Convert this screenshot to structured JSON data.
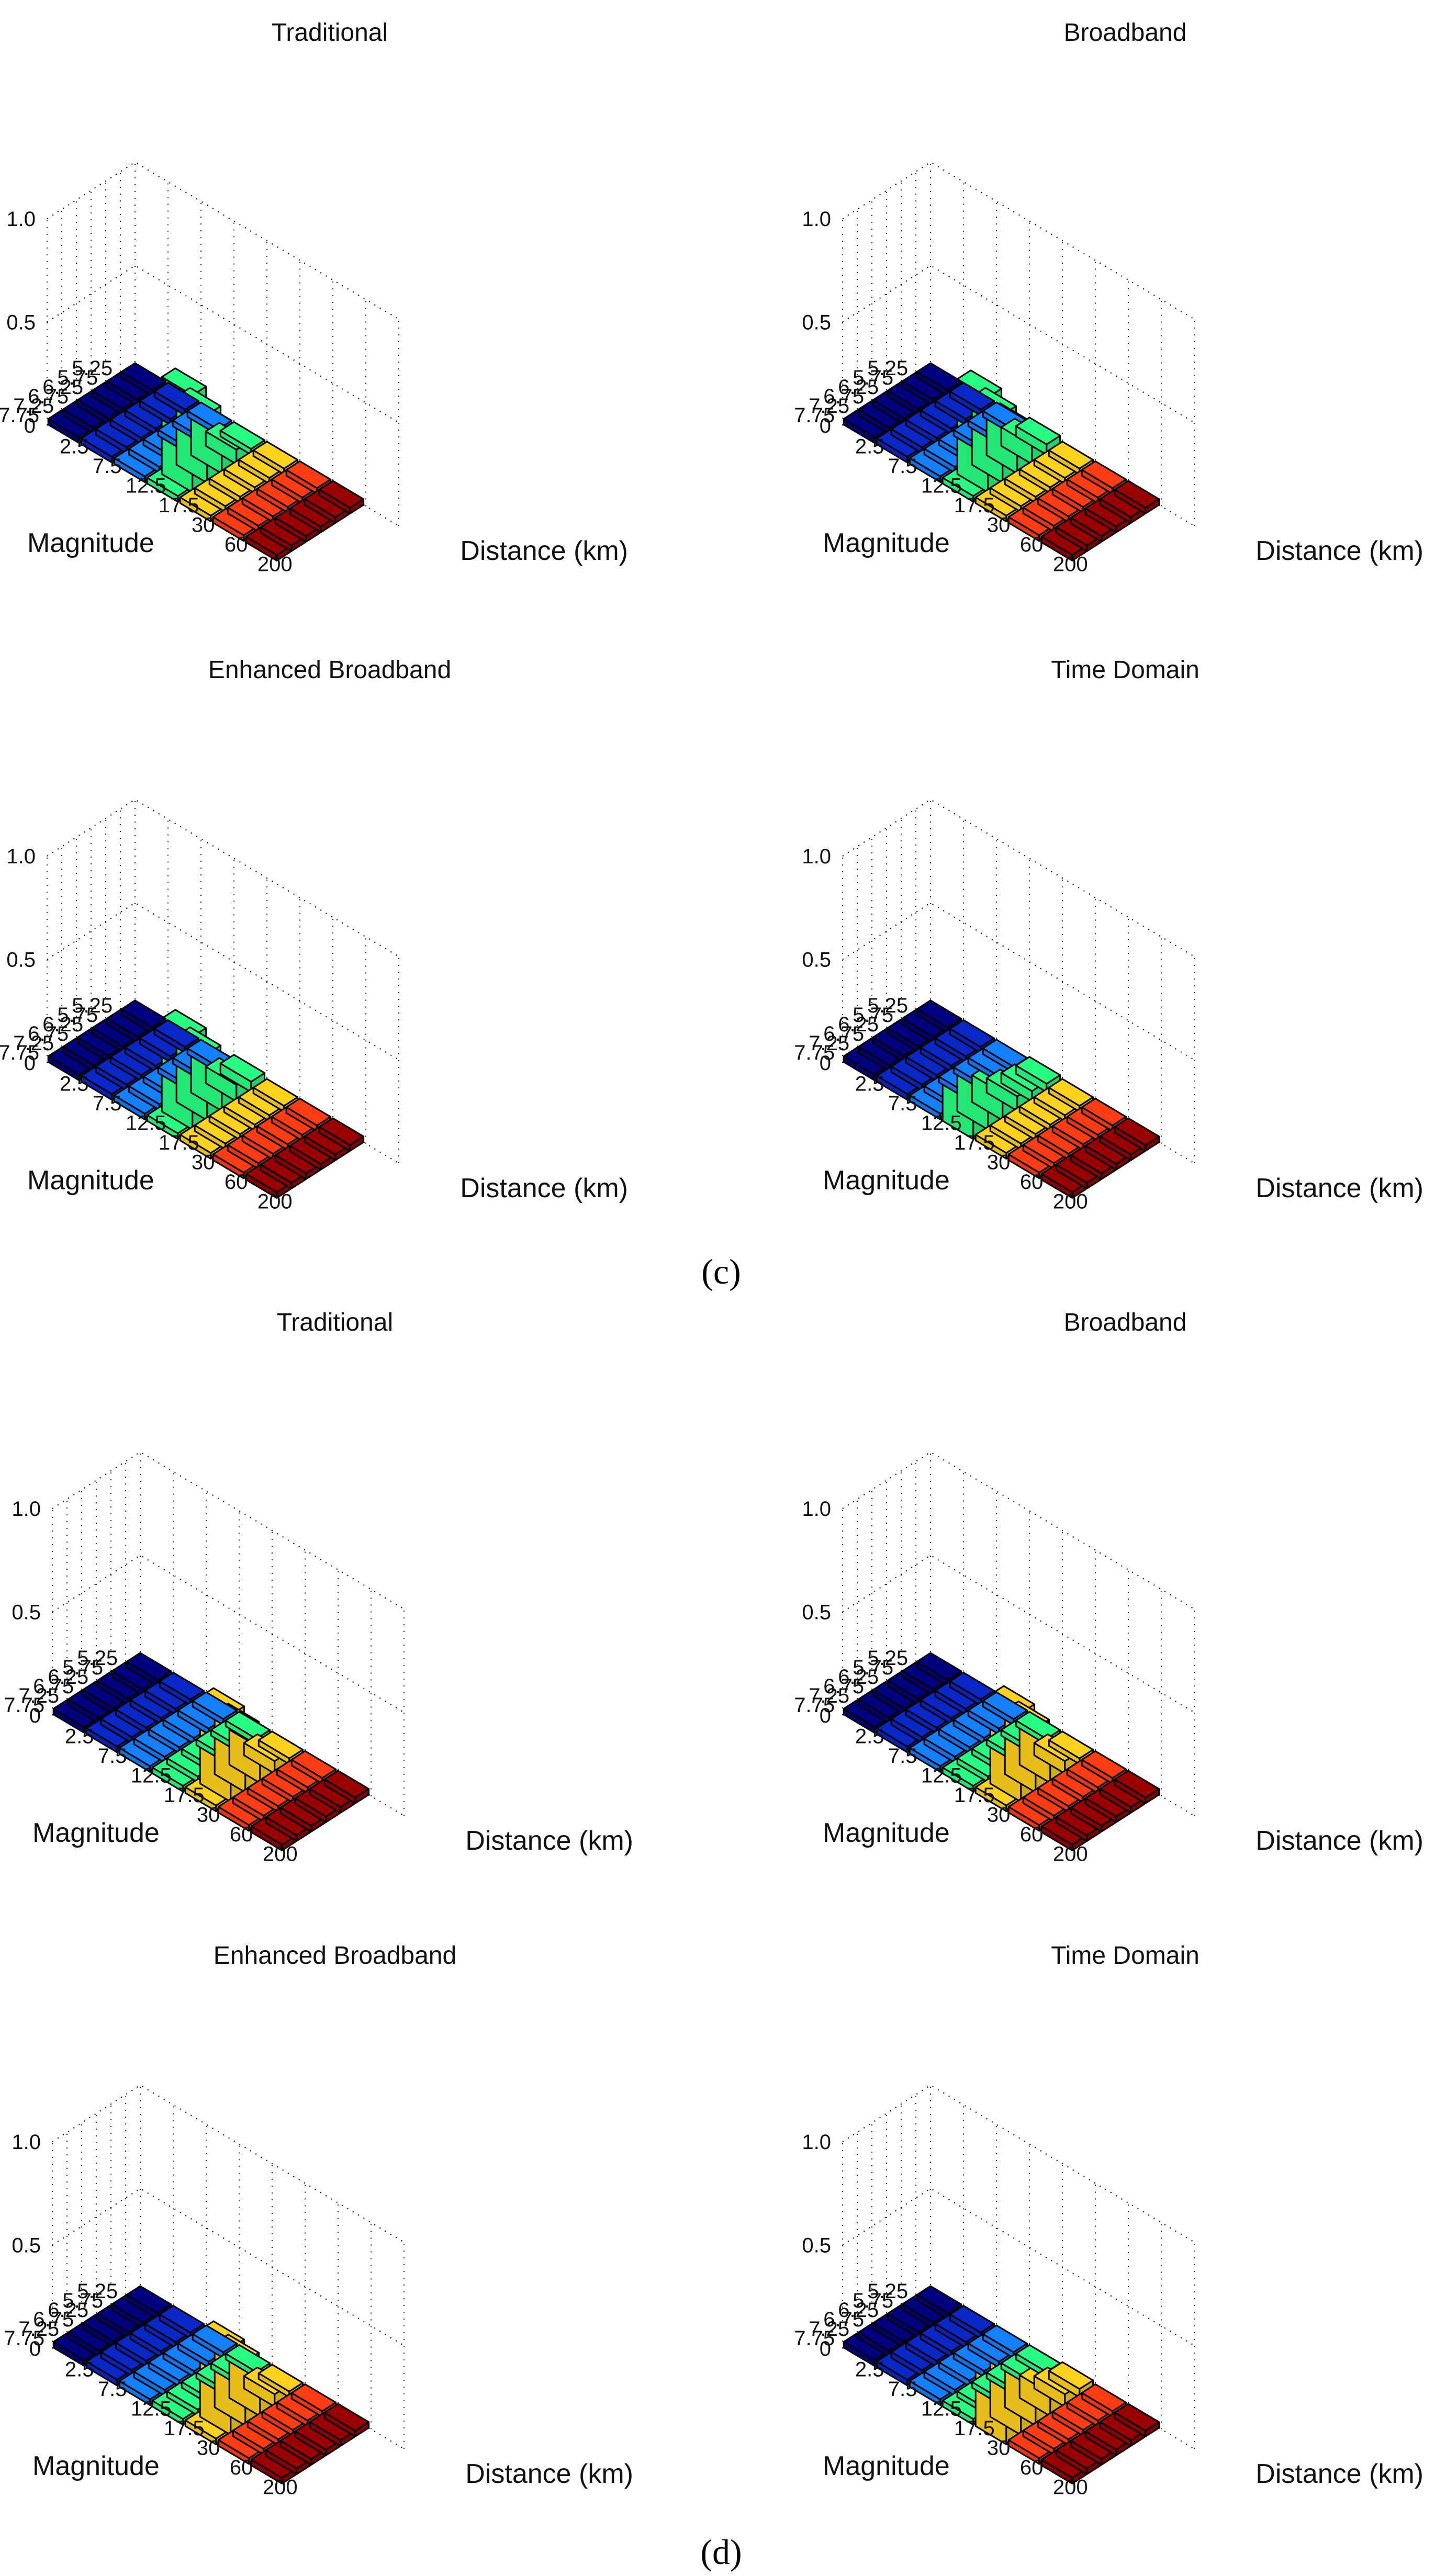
{
  "captions": [
    "(c)",
    "(d)"
  ],
  "color_scale": {
    "by_distance": [
      "#000080",
      "#0a28c8",
      "#1480ff",
      "#32e6ff",
      "#28ff82",
      "#ffd21e",
      "#ff3c14",
      "#9b0000"
    ]
  },
  "chart_data": [
    {
      "type": "bar3d",
      "group": "(c)",
      "title": "Traditional",
      "magnitudes": [
        "5.25",
        "5.75",
        "6.25",
        "6.75",
        "7.25",
        "7.75"
      ],
      "distances": [
        "2.5",
        "7.5",
        "12.5",
        "17.5",
        "30",
        "60",
        "200"
      ],
      "magnitude_ticks": [
        "5.25",
        "5.75",
        "6.25",
        "6.75",
        "7.25",
        "7.75"
      ],
      "distance_ticks": [
        "2.5",
        "7.5",
        "12.5",
        "17.5",
        "30",
        "60",
        "200"
      ],
      "z_ticks": [
        "0",
        "0.5",
        "1.0"
      ],
      "zlim": [
        0,
        1
      ],
      "xlabel": "Distance (km)",
      "ylabel": "Magnitude",
      "highlight_color": "#28ff82",
      "bars": [
        {
          "magnitude": "5.75",
          "distance": "17.5",
          "value": 0.07
        },
        {
          "magnitude": "6.25",
          "distance": "17.5",
          "value": 0.19
        },
        {
          "magnitude": "6.75",
          "distance": "17.5",
          "value": 0.33
        },
        {
          "magnitude": "7.25",
          "distance": "17.5",
          "value": 0.47
        }
      ]
    },
    {
      "type": "bar3d",
      "group": "(c)",
      "title": "Broadband",
      "magnitudes": [
        "5.25",
        "5.75",
        "6.25",
        "6.75",
        "7.25",
        "7.75"
      ],
      "distances": [
        "2.5",
        "7.5",
        "12.5",
        "17.5",
        "30",
        "60",
        "200"
      ],
      "magnitude_ticks": [
        "5.25",
        "5.75",
        "6.25",
        "6.75",
        "7.25",
        "7.75"
      ],
      "distance_ticks": [
        "2.5",
        "7.5",
        "12.5",
        "17.5",
        "30",
        "60",
        "200"
      ],
      "z_ticks": [
        "0",
        "0.5",
        "1.0"
      ],
      "zlim": [
        0,
        1
      ],
      "xlabel": "Distance (km)",
      "ylabel": "Magnitude",
      "highlight_color": "#28ff82",
      "bars": [
        {
          "magnitude": "5.25",
          "distance": "17.5",
          "value": 0.05
        },
        {
          "magnitude": "5.75",
          "distance": "17.5",
          "value": 0.09
        },
        {
          "magnitude": "6.25",
          "distance": "17.5",
          "value": 0.21
        },
        {
          "magnitude": "6.75",
          "distance": "17.5",
          "value": 0.33
        },
        {
          "magnitude": "7.25",
          "distance": "17.5",
          "value": 0.46
        }
      ]
    },
    {
      "type": "bar3d",
      "group": "(c)",
      "title": "Enhanced Broadband",
      "magnitudes": [
        "5.25",
        "5.75",
        "6.25",
        "6.75",
        "7.25",
        "7.75"
      ],
      "distances": [
        "2.5",
        "7.5",
        "12.5",
        "17.5",
        "30",
        "60",
        "200"
      ],
      "magnitude_ticks": [
        "5.25",
        "5.75",
        "6.25",
        "6.75",
        "7.25",
        "7.75"
      ],
      "distance_ticks": [
        "2.5",
        "7.5",
        "12.5",
        "17.5",
        "30",
        "60",
        "200"
      ],
      "z_ticks": [
        "0",
        "0.5",
        "1.0"
      ],
      "zlim": [
        0,
        1
      ],
      "xlabel": "Distance (km)",
      "ylabel": "Magnitude",
      "highlight_color": "#28ff82",
      "bars": [
        {
          "magnitude": "5.25",
          "distance": "17.5",
          "value": 0.05
        },
        {
          "magnitude": "5.75",
          "distance": "17.5",
          "value": 0.08
        },
        {
          "magnitude": "6.25",
          "distance": "17.5",
          "value": 0.2
        },
        {
          "magnitude": "6.75",
          "distance": "17.5",
          "value": 0.32
        },
        {
          "magnitude": "7.25",
          "distance": "17.5",
          "value": 0.45
        }
      ]
    },
    {
      "type": "bar3d",
      "group": "(c)",
      "title": "Time Domain",
      "magnitudes": [
        "5.25",
        "5.75",
        "6.25",
        "6.75",
        "7.25",
        "7.75"
      ],
      "distances": [
        "2.5",
        "7.5",
        "12.5",
        "17.5",
        "30",
        "60",
        "200"
      ],
      "magnitude_ticks": [
        "5.25",
        "5.75",
        "6.25",
        "6.75",
        "7.25",
        "7.75"
      ],
      "distance_ticks": [
        "2.5",
        "7.5",
        "12.5",
        "17.5",
        "30",
        "60",
        "200"
      ],
      "z_ticks": [
        "0",
        "0.5",
        "1.0"
      ],
      "zlim": [
        0,
        1
      ],
      "xlabel": "Distance (km)",
      "ylabel": "Magnitude",
      "highlight_color": "#28ff82",
      "bars": [
        {
          "magnitude": "5.25",
          "distance": "17.5",
          "value": 0.04
        },
        {
          "magnitude": "5.75",
          "distance": "17.5",
          "value": 0.05
        },
        {
          "magnitude": "6.25",
          "distance": "17.5",
          "value": 0.07
        },
        {
          "magnitude": "6.75",
          "distance": "17.5",
          "value": 0.13
        },
        {
          "magnitude": "7.25",
          "distance": "17.5",
          "value": 0.19
        },
        {
          "magnitude": "7.75",
          "distance": "17.5",
          "value": 0.22
        }
      ]
    },
    {
      "type": "bar3d",
      "group": "(d)",
      "title": "Traditional",
      "magnitudes": [
        "5.25",
        "5.75",
        "6.25",
        "6.75",
        "7.25",
        "7.75"
      ],
      "distances": [
        "2.5",
        "7.5",
        "12.5",
        "17.5",
        "30",
        "60",
        "200"
      ],
      "magnitude_ticks": [
        "5.25",
        "5.75",
        "6.25",
        "6.75",
        "7.25",
        "7.75"
      ],
      "distance_ticks": [
        "2.5",
        "7.5",
        "12.5",
        "17.5",
        "30",
        "60",
        "200"
      ],
      "z_ticks": [
        "0",
        "0.5",
        "1.0"
      ],
      "zlim": [
        0,
        1
      ],
      "xlabel": "Distance (km)",
      "ylabel": "Magnitude",
      "highlight_color": "#ffd21e",
      "bars": [
        {
          "magnitude": "5.75",
          "distance": "30",
          "value": 0.06
        },
        {
          "magnitude": "6.25",
          "distance": "30",
          "value": 0.17
        },
        {
          "magnitude": "6.75",
          "distance": "30",
          "value": 0.3
        },
        {
          "magnitude": "7.25",
          "distance": "30",
          "value": 0.42
        }
      ]
    },
    {
      "type": "bar3d",
      "group": "(d)",
      "title": "Broadband",
      "magnitudes": [
        "5.25",
        "5.75",
        "6.25",
        "6.75",
        "7.25",
        "7.75"
      ],
      "distances": [
        "2.5",
        "7.5",
        "12.5",
        "17.5",
        "30",
        "60",
        "200"
      ],
      "magnitude_ticks": [
        "5.25",
        "5.75",
        "6.25",
        "6.75",
        "7.25",
        "7.75"
      ],
      "distance_ticks": [
        "2.5",
        "7.5",
        "12.5",
        "17.5",
        "30",
        "60",
        "200"
      ],
      "z_ticks": [
        "0",
        "0.5",
        "1.0"
      ],
      "zlim": [
        0,
        1
      ],
      "xlabel": "Distance (km)",
      "ylabel": "Magnitude",
      "highlight_color": "#ffd21e",
      "bars": [
        {
          "magnitude": "5.75",
          "distance": "30",
          "value": 0.06
        },
        {
          "magnitude": "6.25",
          "distance": "30",
          "value": 0.18
        },
        {
          "magnitude": "6.75",
          "distance": "30",
          "value": 0.31
        },
        {
          "magnitude": "7.25",
          "distance": "30",
          "value": 0.43
        }
      ]
    },
    {
      "type": "bar3d",
      "group": "(d)",
      "title": "Enhanced Broadband",
      "magnitudes": [
        "5.25",
        "5.75",
        "6.25",
        "6.75",
        "7.25",
        "7.75"
      ],
      "distances": [
        "2.5",
        "7.5",
        "12.5",
        "17.5",
        "30",
        "60",
        "200"
      ],
      "magnitude_ticks": [
        "5.25",
        "5.75",
        "6.25",
        "6.75",
        "7.25",
        "7.75"
      ],
      "distance_ticks": [
        "2.5",
        "7.5",
        "12.5",
        "17.5",
        "30",
        "60",
        "200"
      ],
      "z_ticks": [
        "0",
        "0.5",
        "1.0"
      ],
      "zlim": [
        0,
        1
      ],
      "xlabel": "Distance (km)",
      "ylabel": "Magnitude",
      "highlight_color": "#ffd21e",
      "bars": [
        {
          "magnitude": "5.75",
          "distance": "30",
          "value": 0.06
        },
        {
          "magnitude": "6.25",
          "distance": "30",
          "value": 0.18
        },
        {
          "magnitude": "6.75",
          "distance": "30",
          "value": 0.31
        },
        {
          "magnitude": "7.25",
          "distance": "30",
          "value": 0.42
        }
      ]
    },
    {
      "type": "bar3d",
      "group": "(d)",
      "title": "Time Domain",
      "magnitudes": [
        "5.25",
        "5.75",
        "6.25",
        "6.75",
        "7.25",
        "7.75"
      ],
      "distances": [
        "2.5",
        "7.5",
        "12.5",
        "17.5",
        "30",
        "60",
        "200"
      ],
      "magnitude_ticks": [
        "5.25",
        "5.75",
        "6.25",
        "6.75",
        "7.25",
        "7.75"
      ],
      "distance_ticks": [
        "2.5",
        "7.5",
        "12.5",
        "17.5",
        "30",
        "60",
        "200"
      ],
      "z_ticks": [
        "0",
        "0.5",
        "1.0"
      ],
      "zlim": [
        0,
        1
      ],
      "xlabel": "Distance (km)",
      "ylabel": "Magnitude",
      "highlight_color": "#ffd21e",
      "bars": [
        {
          "magnitude": "5.25",
          "distance": "30",
          "value": 0.04
        },
        {
          "magnitude": "5.75",
          "distance": "30",
          "value": 0.06
        },
        {
          "magnitude": "6.25",
          "distance": "30",
          "value": 0.11
        },
        {
          "magnitude": "6.75",
          "distance": "30",
          "value": 0.19
        },
        {
          "magnitude": "7.25",
          "distance": "30",
          "value": 0.31
        },
        {
          "magnitude": "7.75",
          "distance": "30",
          "value": 0.4
        }
      ]
    }
  ]
}
